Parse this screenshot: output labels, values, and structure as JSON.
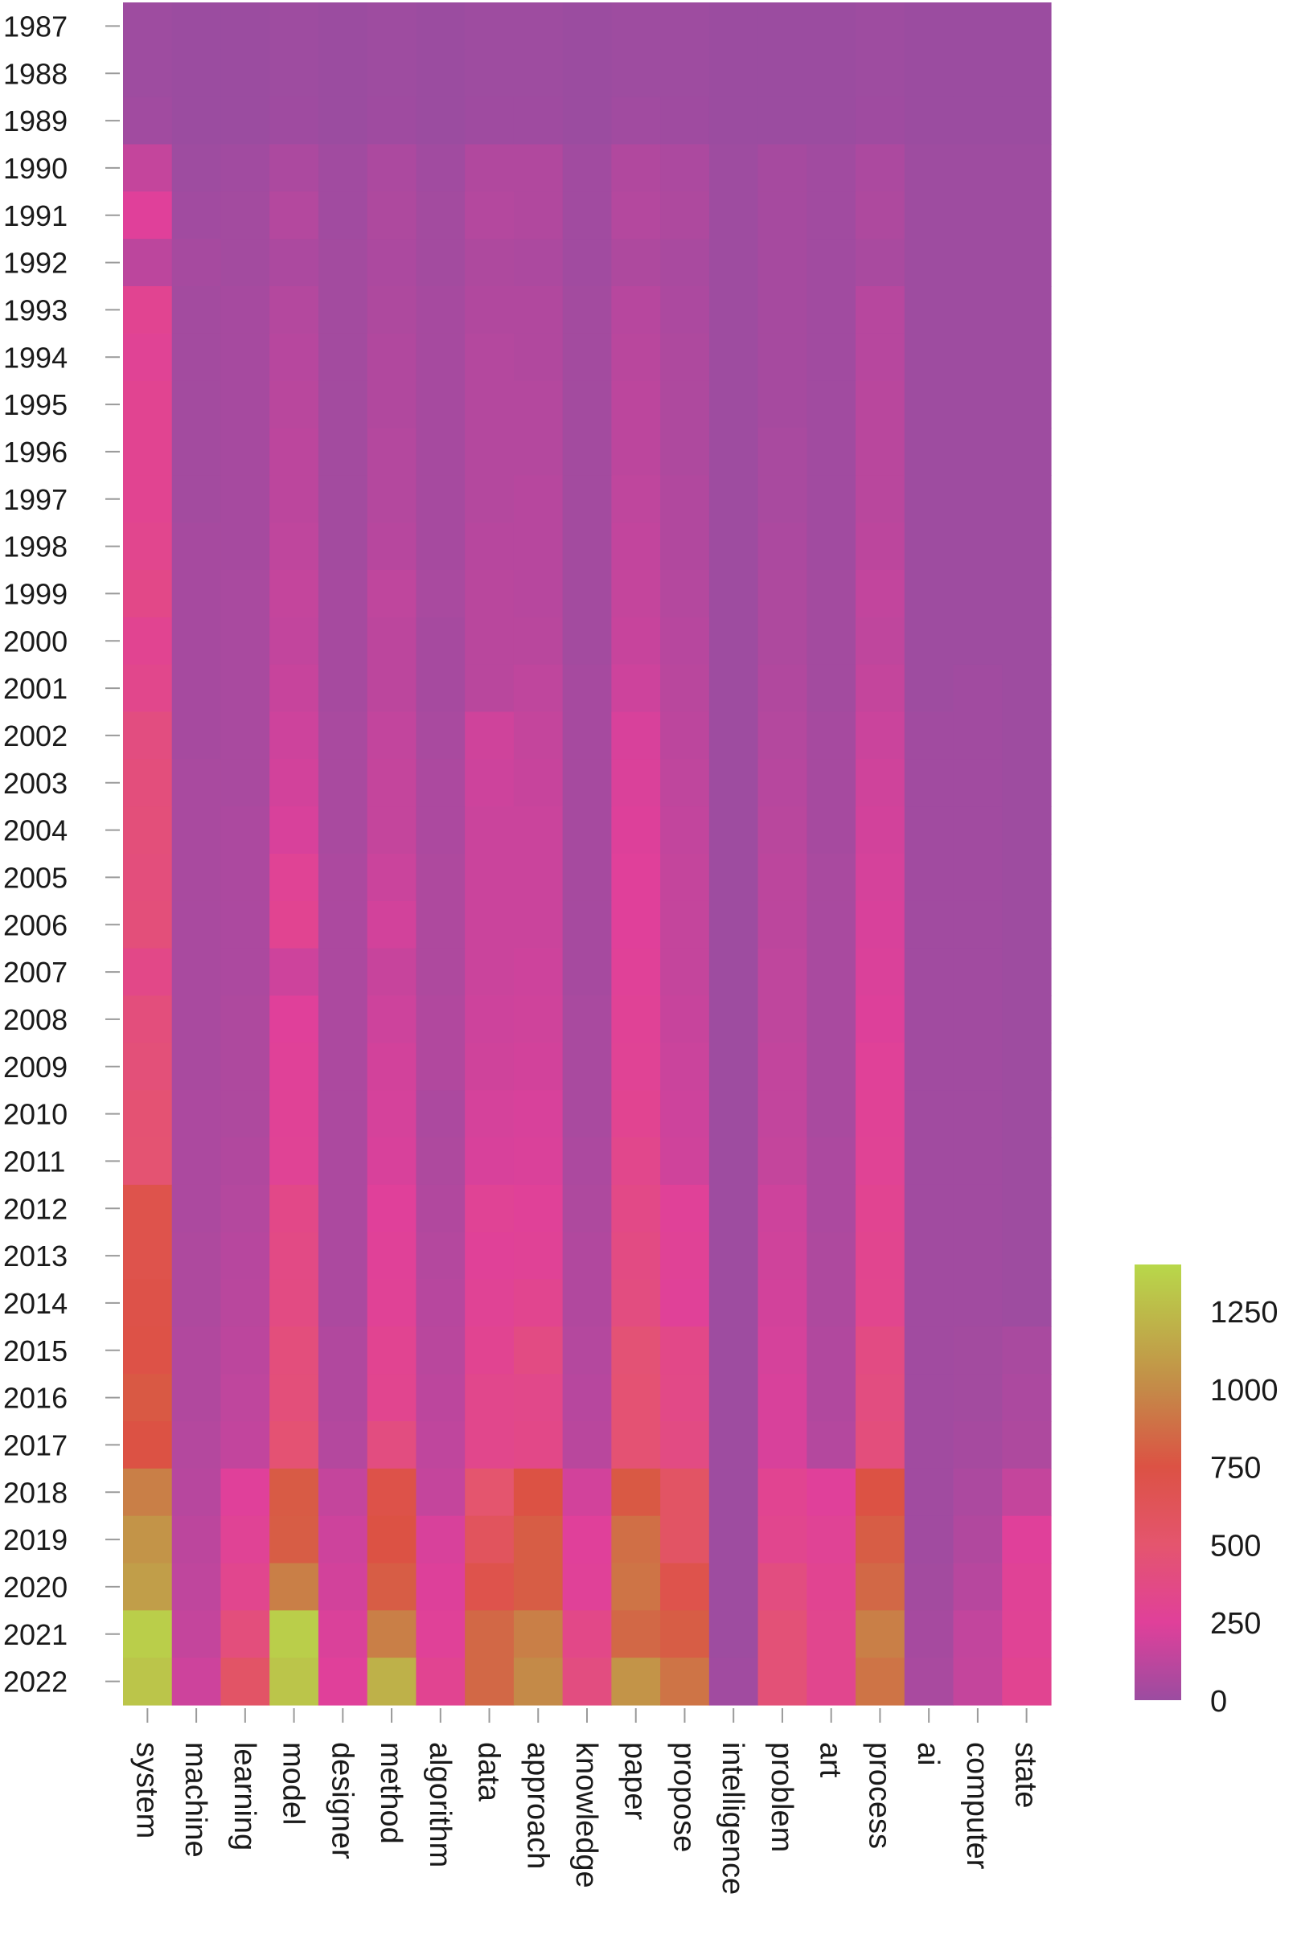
{
  "chart_data": {
    "type": "heatmap",
    "title": "",
    "xlabel": "",
    "ylabel": "",
    "x_categories": [
      "system",
      "machine",
      "learning",
      "model",
      "designer",
      "method",
      "algorithm",
      "data",
      "approach",
      "knowledge",
      "paper",
      "propose",
      "intelligence",
      "problem",
      "art",
      "process",
      "ai",
      "computer",
      "state"
    ],
    "y_categories": [
      "1987",
      "1988",
      "1989",
      "1990",
      "1991",
      "1992",
      "1993",
      "1994",
      "1995",
      "1996",
      "1997",
      "1998",
      "1999",
      "2000",
      "2001",
      "2002",
      "2003",
      "2004",
      "2005",
      "2006",
      "2007",
      "2008",
      "2009",
      "2010",
      "2011",
      "2012",
      "2013",
      "2014",
      "2015",
      "2016",
      "2017",
      "2018",
      "2019",
      "2020",
      "2021",
      "2022"
    ],
    "values": [
      [
        10,
        0,
        0,
        10,
        0,
        10,
        0,
        10,
        10,
        0,
        10,
        10,
        0,
        0,
        0,
        10,
        0,
        0,
        0
      ],
      [
        10,
        0,
        0,
        10,
        0,
        10,
        0,
        10,
        10,
        0,
        10,
        10,
        0,
        0,
        0,
        10,
        0,
        0,
        0
      ],
      [
        20,
        0,
        0,
        15,
        0,
        15,
        0,
        15,
        15,
        0,
        20,
        15,
        0,
        0,
        0,
        15,
        0,
        0,
        0
      ],
      [
        150,
        10,
        20,
        60,
        20,
        60,
        20,
        80,
        80,
        20,
        80,
        60,
        10,
        40,
        20,
        60,
        10,
        10,
        10
      ],
      [
        250,
        20,
        30,
        90,
        20,
        70,
        30,
        90,
        80,
        20,
        90,
        70,
        10,
        40,
        20,
        70,
        10,
        10,
        10
      ],
      [
        120,
        40,
        30,
        60,
        30,
        60,
        30,
        70,
        60,
        20,
        70,
        50,
        10,
        40,
        20,
        50,
        10,
        10,
        10
      ],
      [
        300,
        30,
        40,
        90,
        30,
        70,
        40,
        80,
        80,
        30,
        100,
        60,
        10,
        40,
        20,
        100,
        10,
        10,
        10
      ],
      [
        280,
        30,
        40,
        100,
        30,
        80,
        40,
        90,
        80,
        30,
        110,
        70,
        10,
        40,
        20,
        100,
        10,
        10,
        10
      ],
      [
        300,
        30,
        40,
        110,
        30,
        80,
        40,
        90,
        90,
        30,
        120,
        70,
        10,
        40,
        20,
        110,
        10,
        10,
        10
      ],
      [
        300,
        30,
        40,
        120,
        30,
        90,
        40,
        90,
        90,
        30,
        120,
        70,
        10,
        50,
        20,
        110,
        10,
        10,
        10
      ],
      [
        300,
        30,
        40,
        120,
        30,
        90,
        40,
        90,
        100,
        30,
        130,
        80,
        10,
        50,
        20,
        110,
        10,
        10,
        10
      ],
      [
        320,
        40,
        40,
        130,
        30,
        100,
        40,
        100,
        100,
        30,
        140,
        80,
        10,
        60,
        20,
        120,
        10,
        10,
        10
      ],
      [
        350,
        40,
        50,
        150,
        40,
        130,
        50,
        110,
        100,
        30,
        150,
        90,
        10,
        70,
        30,
        140,
        10,
        10,
        10
      ],
      [
        300,
        40,
        50,
        140,
        40,
        120,
        40,
        110,
        110,
        30,
        160,
        100,
        10,
        70,
        30,
        130,
        10,
        10,
        10
      ],
      [
        330,
        40,
        50,
        160,
        40,
        120,
        40,
        110,
        130,
        40,
        180,
        110,
        10,
        80,
        30,
        150,
        10,
        20,
        10
      ],
      [
        400,
        40,
        50,
        180,
        50,
        140,
        50,
        190,
        150,
        40,
        220,
        120,
        10,
        90,
        40,
        170,
        20,
        20,
        10
      ],
      [
        420,
        50,
        50,
        200,
        50,
        150,
        60,
        180,
        160,
        40,
        230,
        130,
        10,
        100,
        40,
        190,
        20,
        20,
        10
      ],
      [
        430,
        50,
        60,
        220,
        50,
        150,
        60,
        170,
        170,
        40,
        240,
        140,
        10,
        110,
        40,
        200,
        20,
        20,
        10
      ],
      [
        420,
        50,
        60,
        280,
        60,
        170,
        70,
        170,
        170,
        40,
        250,
        150,
        10,
        120,
        50,
        210,
        20,
        20,
        10
      ],
      [
        430,
        50,
        60,
        300,
        60,
        200,
        70,
        170,
        170,
        40,
        250,
        150,
        10,
        120,
        50,
        220,
        20,
        20,
        10
      ],
      [
        350,
        50,
        60,
        180,
        60,
        160,
        70,
        170,
        180,
        40,
        260,
        150,
        10,
        130,
        50,
        230,
        20,
        20,
        10
      ],
      [
        420,
        50,
        70,
        250,
        60,
        180,
        80,
        180,
        190,
        50,
        270,
        160,
        10,
        130,
        50,
        240,
        20,
        20,
        10
      ],
      [
        440,
        50,
        70,
        260,
        60,
        200,
        80,
        190,
        200,
        50,
        280,
        170,
        10,
        140,
        50,
        260,
        20,
        20,
        10
      ],
      [
        470,
        60,
        70,
        270,
        60,
        210,
        60,
        210,
        220,
        50,
        300,
        180,
        10,
        140,
        50,
        270,
        20,
        20,
        10
      ],
      [
        480,
        60,
        80,
        280,
        60,
        220,
        70,
        220,
        230,
        60,
        330,
        190,
        10,
        150,
        60,
        280,
        20,
        20,
        10
      ],
      [
        700,
        60,
        90,
        350,
        60,
        250,
        80,
        280,
        260,
        70,
        360,
        260,
        10,
        180,
        60,
        300,
        20,
        20,
        10
      ],
      [
        700,
        70,
        100,
        370,
        60,
        260,
        90,
        260,
        270,
        80,
        380,
        270,
        10,
        190,
        70,
        310,
        20,
        20,
        10
      ],
      [
        720,
        70,
        110,
        380,
        60,
        270,
        100,
        280,
        310,
        80,
        400,
        260,
        10,
        200,
        70,
        320,
        20,
        20,
        10
      ],
      [
        730,
        80,
        120,
        420,
        80,
        300,
        110,
        300,
        380,
        90,
        460,
        350,
        10,
        210,
        80,
        380,
        20,
        30,
        50
      ],
      [
        780,
        80,
        130,
        430,
        80,
        310,
        120,
        330,
        340,
        100,
        470,
        360,
        10,
        220,
        80,
        400,
        20,
        30,
        60
      ],
      [
        750,
        90,
        140,
        470,
        90,
        400,
        130,
        330,
        350,
        110,
        470,
        380,
        10,
        220,
        90,
        420,
        20,
        40,
        70
      ],
      [
        950,
        100,
        250,
        790,
        150,
        720,
        150,
        500,
        750,
        200,
        780,
        560,
        10,
        300,
        250,
        750,
        20,
        60,
        150
      ],
      [
        1050,
        120,
        280,
        800,
        180,
        750,
        220,
        600,
        800,
        250,
        880,
        560,
        10,
        320,
        280,
        800,
        20,
        80,
        250
      ],
      [
        1100,
        130,
        320,
        950,
        200,
        800,
        240,
        700,
        800,
        260,
        900,
        700,
        10,
        400,
        300,
        850,
        30,
        100,
        270
      ],
      [
        1350,
        150,
        420,
        1350,
        230,
        950,
        260,
        850,
        950,
        350,
        850,
        800,
        10,
        450,
        320,
        950,
        40,
        140,
        280
      ],
      [
        1300,
        180,
        550,
        1300,
        250,
        1200,
        300,
        850,
        1000,
        400,
        1050,
        900,
        20,
        450,
        320,
        900,
        50,
        150,
        300
      ]
    ],
    "colorbar": {
      "ticks": [
        0,
        250,
        500,
        750,
        1000,
        1250
      ],
      "max": 1400,
      "stops": [
        {
          "v": 0,
          "color": "#9b4ca0"
        },
        {
          "v": 250,
          "color": "#e0409a"
        },
        {
          "v": 500,
          "color": "#e4556e"
        },
        {
          "v": 750,
          "color": "#dc5244"
        },
        {
          "v": 1000,
          "color": "#c48a48"
        },
        {
          "v": 1400,
          "color": "#b8d84a"
        }
      ]
    },
    "legend_placement": "right"
  }
}
